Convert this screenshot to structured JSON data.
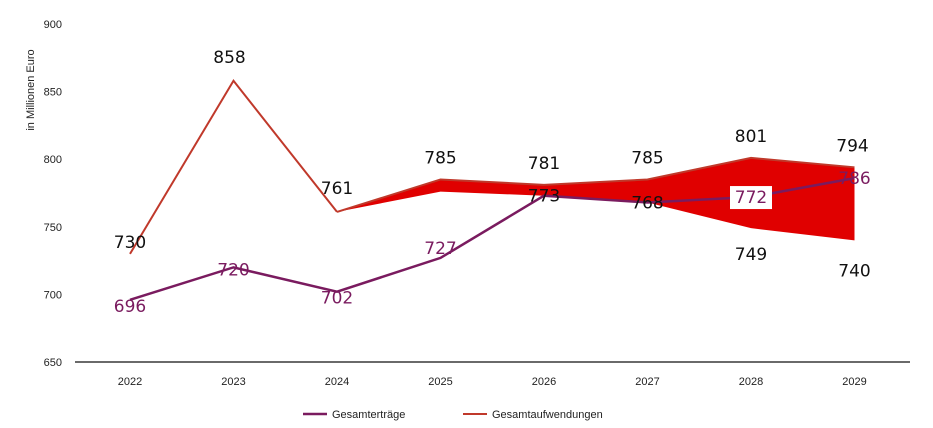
{
  "chart_data": {
    "type": "line",
    "title": "",
    "xlabel": "",
    "ylabel": "in Millionen Euro",
    "ylim": [
      650,
      900
    ],
    "yticks": [
      650,
      700,
      750,
      800,
      850,
      900
    ],
    "categories": [
      "2022",
      "2023",
      "2024",
      "2025",
      "2026",
      "2027",
      "2028",
      "2029"
    ],
    "grid": false,
    "legend_position": "bottom",
    "colors": {
      "ertraege": "#7a1b5f",
      "aufwendungen": "#c0392b",
      "band": "#e00000"
    },
    "series": [
      {
        "name": "Gesamterträge",
        "values": [
          696,
          720,
          702,
          727,
          773,
          768,
          772,
          786
        ]
      },
      {
        "name": "Gesamtaufwendungen",
        "values": [
          730,
          858,
          761,
          null,
          null,
          null,
          null,
          null
        ]
      }
    ],
    "band": {
      "x": [
        "2024",
        "2025",
        "2026",
        "2027",
        "2028",
        "2029"
      ],
      "upper": [
        761,
        785,
        781,
        785,
        801,
        794
      ],
      "lower": [
        761,
        776,
        773,
        768,
        749,
        740
      ]
    },
    "data_labels": [
      {
        "text": "696",
        "x": "2022",
        "y": 696,
        "series": "ertraege"
      },
      {
        "text": "720",
        "x": "2023",
        "y": 720,
        "series": "ertraege"
      },
      {
        "text": "702",
        "x": "2024",
        "y": 702,
        "series": "ertraege"
      },
      {
        "text": "727",
        "x": "2025",
        "y": 727,
        "series": "ertraege"
      },
      {
        "text": "773",
        "x": "2026",
        "y": 773,
        "series": "black"
      },
      {
        "text": "768",
        "x": "2027",
        "y": 768,
        "series": "black"
      },
      {
        "text": "772",
        "x": "2028",
        "y": 772,
        "series": "ertraege"
      },
      {
        "text": "786",
        "x": "2029",
        "y": 786,
        "series": "ertraege"
      },
      {
        "text": "730",
        "x": "2022",
        "y": 730,
        "series": "black"
      },
      {
        "text": "858",
        "x": "2023",
        "y": 858,
        "series": "black"
      },
      {
        "text": "761",
        "x": "2024",
        "y": 761,
        "series": "black"
      },
      {
        "text": "785",
        "x": "2025",
        "y": 785,
        "series": "black"
      },
      {
        "text": "781",
        "x": "2026",
        "y": 781,
        "series": "black"
      },
      {
        "text": "785",
        "x": "2027",
        "y": 785,
        "series": "black"
      },
      {
        "text": "801",
        "x": "2028",
        "y": 801,
        "series": "black"
      },
      {
        "text": "794",
        "x": "2029",
        "y": 794,
        "series": "black"
      },
      {
        "text": "749",
        "x": "2028",
        "y": 749,
        "series": "black"
      },
      {
        "text": "740",
        "x": "2029",
        "y": 740,
        "series": "black"
      }
    ]
  }
}
